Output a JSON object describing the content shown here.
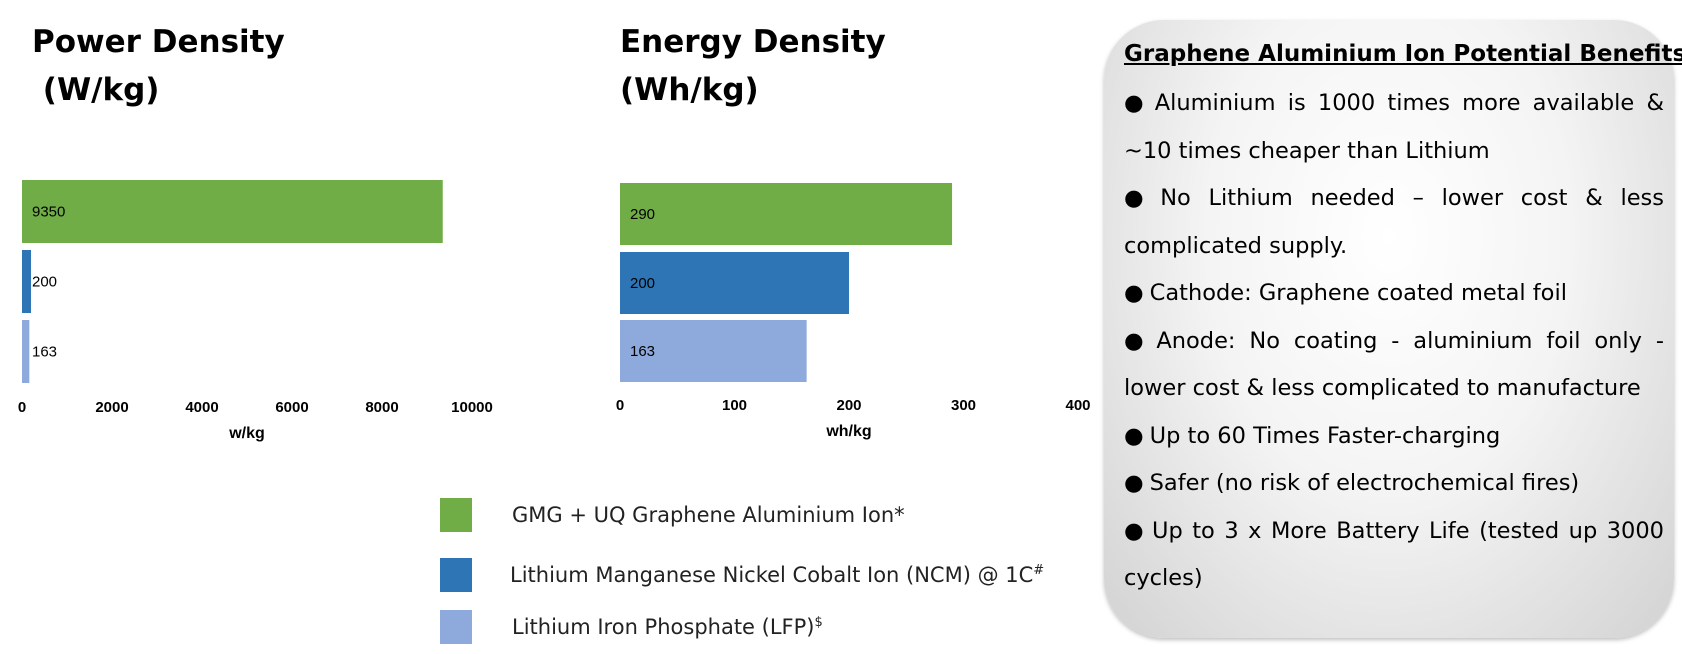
{
  "chart_data": [
    {
      "type": "bar",
      "orientation": "horizontal",
      "title_lines": [
        "Power Density",
        " (W/kg)"
      ],
      "xlabel": "w/kg",
      "categories": [
        "GMG + UQ Graphene Aluminium Ion*",
        "Lithium Manganese Nickel Cobalt Ion (NCM) @ 1C#",
        "Lithium Iron Phosphate (LFP)$"
      ],
      "values": [
        9350,
        200,
        163
      ],
      "value_labels": [
        "9350",
        "200",
        "163"
      ],
      "xlim": [
        0,
        10000
      ],
      "ticks": [
        0,
        2000,
        4000,
        6000,
        8000,
        10000
      ],
      "tick_labels": [
        "0",
        "2000",
        "4000",
        "6000",
        "8000",
        "10000"
      ],
      "colors": [
        "#70AD47",
        "#2E75B6",
        "#8EA9DB"
      ],
      "grid": false
    },
    {
      "type": "bar",
      "orientation": "horizontal",
      "title_lines": [
        "Energy Density",
        "(Wh/kg)"
      ],
      "xlabel": "wh/kg",
      "categories": [
        "GMG + UQ Graphene Aluminium Ion*",
        "Lithium Manganese Nickel Cobalt Ion (NCM) @ 1C#",
        "Lithium Iron Phosphate (LFP)$"
      ],
      "values": [
        290,
        200,
        163
      ],
      "value_labels": [
        "290",
        "200",
        "163"
      ],
      "xlim": [
        0,
        400
      ],
      "ticks": [
        0,
        100,
        200,
        300,
        400
      ],
      "tick_labels": [
        "0",
        "100",
        "200",
        "300",
        "400"
      ],
      "colors": [
        "#70AD47",
        "#2E75B6",
        "#8EA9DB"
      ],
      "grid": false
    }
  ],
  "legend": {
    "items": [
      {
        "label": "GMG + UQ Graphene Aluminium Ion*",
        "sup": "",
        "color": "#70AD47"
      },
      {
        "label": "Lithium Manganese Nickel Cobalt Ion (NCM) @ 1C",
        "sup": "#",
        "color": "#2E75B6"
      },
      {
        "label": "Lithium Iron Phosphate (LFP)",
        "sup": "$",
        "color": "#8EA9DB"
      }
    ]
  },
  "benefits": {
    "title": "Graphene Aluminium Ion Potential Benefits:",
    "bullet": "●",
    "items": [
      "Aluminium is 1000 times more available & ~10 times cheaper than Lithium",
      "No Lithium  needed – lower cost & less complicated supply.",
      "Cathode: Graphene coated metal foil",
      "Anode: No coating - aluminium foil only - lower cost & less complicated to manufacture",
      "Up to 60 Times Faster-charging",
      "Safer (no risk of electrochemical fires)",
      "Up to 3 x More Battery Life (tested up 3000 cycles)"
    ]
  }
}
